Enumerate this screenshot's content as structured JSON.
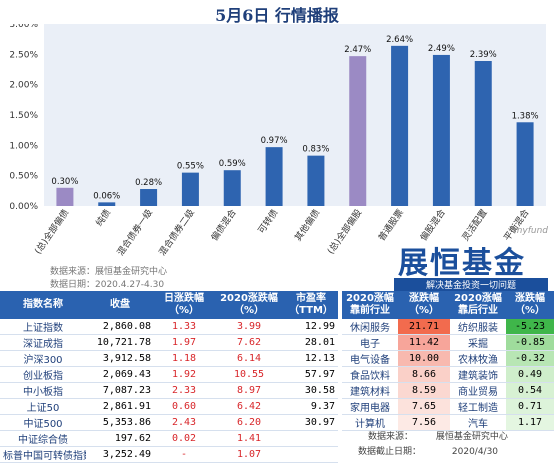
{
  "page_title": "5月6日 行情播报",
  "chart_data": {
    "type": "bar",
    "categories": [
      "(总)全部偏债",
      "纯债",
      "混合债券一级",
      "混合债券二级",
      "偏债混合",
      "可转债",
      "其他偏债",
      "(总)全部偏股",
      "普通股票",
      "偏股混合",
      "灵活配置",
      "平衡混合"
    ],
    "values": [
      0.3,
      0.06,
      0.28,
      0.55,
      0.59,
      0.97,
      0.83,
      2.47,
      2.64,
      2.49,
      2.39,
      1.38
    ],
    "value_labels": [
      "0.30%",
      "0.06%",
      "0.28%",
      "0.55%",
      "0.59%",
      "0.97%",
      "0.83%",
      "2.47%",
      "2.64%",
      "2.49%",
      "2.39%",
      "1.38%"
    ],
    "highlight_indices": [
      0,
      7
    ],
    "ylim": [
      0,
      3.0
    ],
    "yticks": [
      "0.00%",
      "0.50%",
      "1.00%",
      "1.50%",
      "2.00%",
      "2.50%",
      "3.00%"
    ],
    "ytick_values": [
      0,
      0.5,
      1.0,
      1.5,
      2.0,
      2.5,
      3.0
    ],
    "colors": {
      "bar": "#2e64b0",
      "highlight": "#9b8ac4",
      "plot_bg": "#eaeff7"
    },
    "grid": false
  },
  "chart_source": "数据来源：展恒基金研究中心",
  "chart_date": "数据日期：2020.4.27-4.30",
  "brand": {
    "site": "myfund",
    "name": "展恒基金",
    "slogan": "解决基金投资一切问题"
  },
  "left_table": {
    "headers": [
      "指数名称",
      "收盘",
      "日涨跌幅（%）",
      "2020涨跌幅（%）",
      "市盈率（TTM）"
    ],
    "rows": [
      [
        "上证指数",
        "2,860.08",
        "1.33",
        "3.99",
        "12.99"
      ],
      [
        "深证成指",
        "10,721.78",
        "1.97",
        "7.62",
        "28.01"
      ],
      [
        "沪深300",
        "3,912.58",
        "1.18",
        "6.14",
        "12.13"
      ],
      [
        "创业板指",
        "2,069.43",
        "1.92",
        "10.55",
        "57.97"
      ],
      [
        "中小板指",
        "7,087.23",
        "2.33",
        "8.97",
        "30.58"
      ],
      [
        "上证50",
        "2,861.91",
        "0.60",
        "6.42",
        "9.37"
      ],
      [
        "中证500",
        "5,353.86",
        "2.43",
        "6.20",
        "30.97"
      ],
      [
        "中证综合债",
        "197.62",
        "0.02",
        "1.41",
        ""
      ],
      [
        "标普中国可转债指数",
        "3,252.49",
        "-",
        "1.07",
        ""
      ]
    ]
  },
  "right_table": {
    "headers": [
      "2020涨幅靠前行业",
      "涨跌幅（%）",
      "2020涨幅靠后行业",
      "涨跌幅（%）"
    ],
    "rows": [
      [
        "休闲服务",
        "21.71",
        "纺织服装",
        "-5.23"
      ],
      [
        "电子",
        "11.42",
        "采掘",
        "-0.85"
      ],
      [
        "电气设备",
        "10.00",
        "农林牧渔",
        "-0.32"
      ],
      [
        "食品饮料",
        "8.66",
        "建筑装饰",
        "0.49"
      ],
      [
        "建筑材料",
        "8.59",
        "商业贸易",
        "0.54"
      ],
      [
        "家用电器",
        "7.65",
        "轻工制造",
        "0.71"
      ],
      [
        "计算机",
        "7.56",
        "汽车",
        "1.17"
      ]
    ],
    "top_colors": [
      "#f26b4e",
      "#f7a59a",
      "#f8b9af",
      "#fad0c8",
      "#fbd8d1",
      "#fce2dc",
      "#fdeae5"
    ],
    "bottom_colors": [
      "#3fb64a",
      "#9fdc9c",
      "#b8e6b4",
      "#cfeecb",
      "#d7f1d3",
      "#ddf3da",
      "#e4f6e1"
    ]
  },
  "footer": {
    "source_label": "数据来源：",
    "source_value": "展恒基金研究中心",
    "date_label": "数据截止日期：",
    "date_value": "2020/4/30"
  }
}
